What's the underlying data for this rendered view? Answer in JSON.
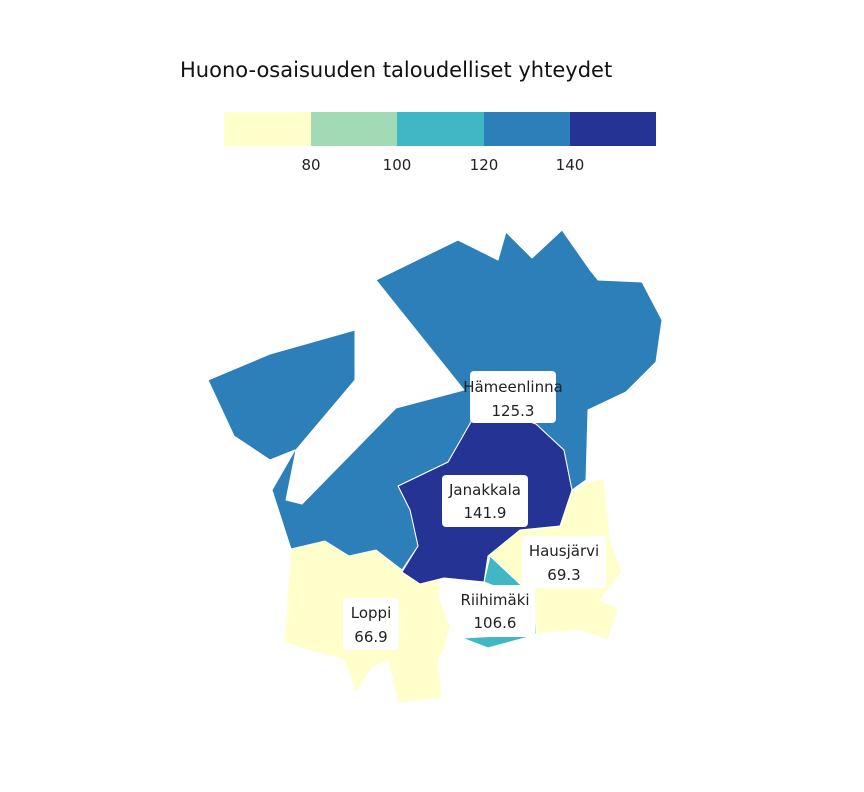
{
  "map": {
    "title": "Huono-osaisuuden taloudelliset yhteydet",
    "legend": {
      "colors": [
        "#ffffcc",
        "#a1dab4",
        "#41b6c4",
        "#2c7fb8",
        "#253494"
      ],
      "breaks": [
        "80",
        "100",
        "120",
        "140"
      ]
    },
    "regions": [
      {
        "name": "Hämeenlinna",
        "value": "125.3",
        "color": "#2c7fb8"
      },
      {
        "name": "Janakkala",
        "value": "141.9",
        "color": "#253494"
      },
      {
        "name": "Hausjärvi",
        "value": "69.3",
        "color": "#ffffcc"
      },
      {
        "name": "Riihimäki",
        "value": "106.6",
        "color": "#41b6c4"
      },
      {
        "name": "Loppi",
        "value": "66.9",
        "color": "#ffffcc"
      }
    ]
  }
}
